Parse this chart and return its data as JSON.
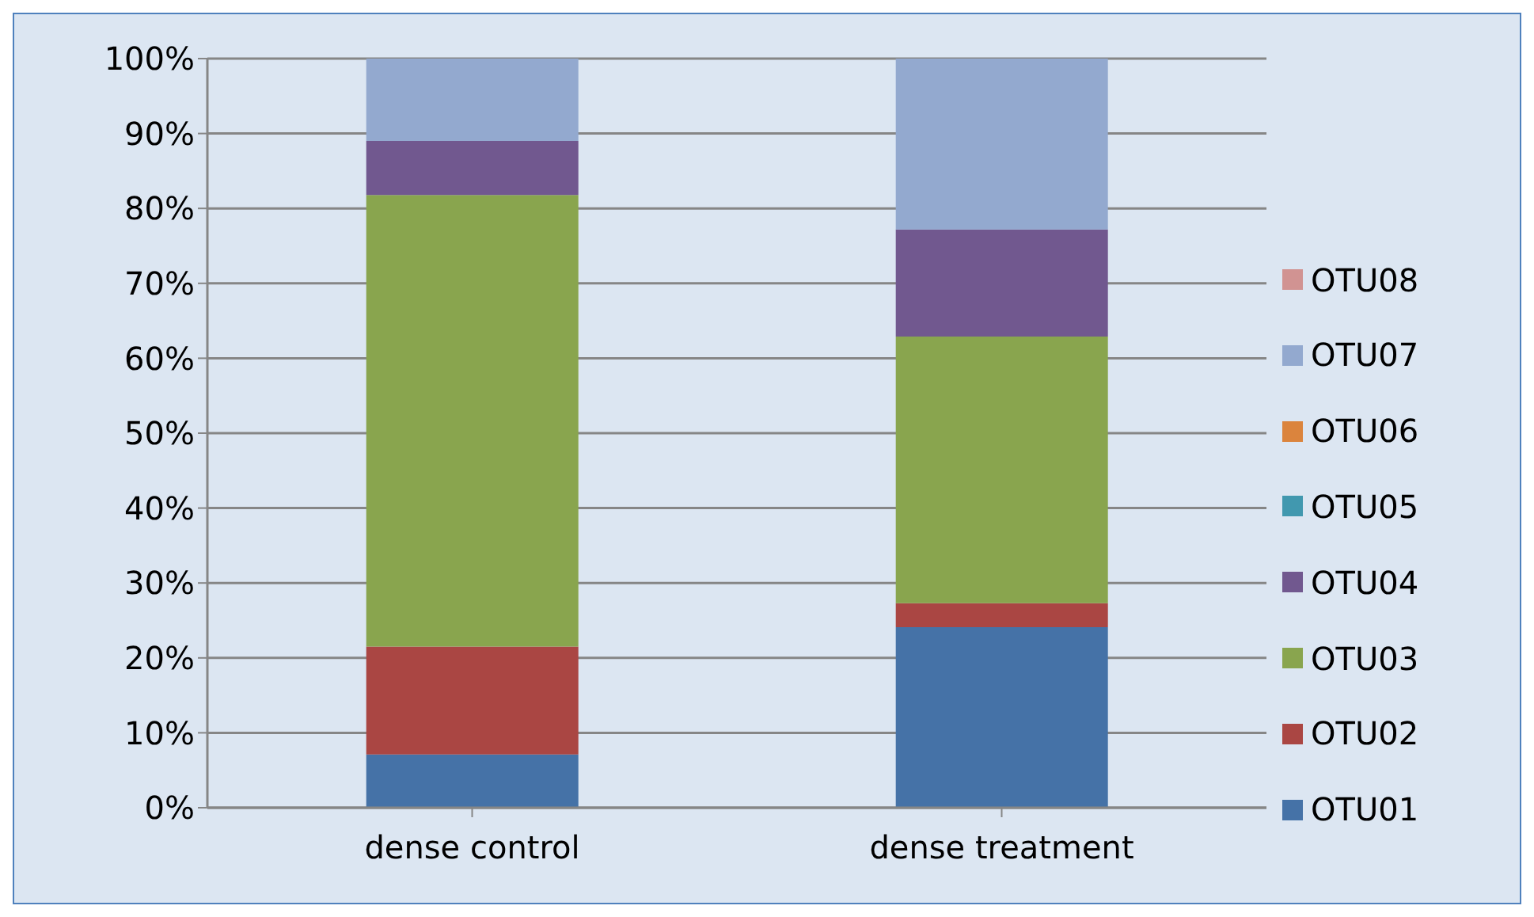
{
  "chart_data": {
    "type": "bar",
    "stacked": true,
    "categories": [
      "dense control",
      "dense treatment"
    ],
    "series": [
      {
        "name": "OTU01",
        "color": "#4572a7",
        "values": [
          7.1,
          24.1
        ]
      },
      {
        "name": "OTU02",
        "color": "#aa4643",
        "values": [
          14.4,
          3.2
        ]
      },
      {
        "name": "OTU03",
        "color": "#89a54e",
        "values": [
          60.3,
          35.6
        ]
      },
      {
        "name": "OTU04",
        "color": "#71588f",
        "values": [
          7.2,
          14.3
        ]
      },
      {
        "name": "OTU05",
        "color": "#4198af",
        "values": [
          0,
          0
        ]
      },
      {
        "name": "OTU06",
        "color": "#db843d",
        "values": [
          0,
          0
        ]
      },
      {
        "name": "OTU07",
        "color": "#93a9cf",
        "values": [
          11.0,
          22.8
        ]
      },
      {
        "name": "OTU08",
        "color": "#d19392",
        "values": [
          0,
          0
        ]
      }
    ],
    "ylim": [
      0,
      100
    ],
    "yticks": [
      {
        "value": 0,
        "label": "0%"
      },
      {
        "value": 10,
        "label": "10%"
      },
      {
        "value": 20,
        "label": "20%"
      },
      {
        "value": 30,
        "label": "30%"
      },
      {
        "value": 40,
        "label": "40%"
      },
      {
        "value": 50,
        "label": "50%"
      },
      {
        "value": 60,
        "label": "60%"
      },
      {
        "value": 70,
        "label": "70%"
      },
      {
        "value": 80,
        "label": "80%"
      },
      {
        "value": 90,
        "label": "90%"
      },
      {
        "value": 100,
        "label": "100%"
      }
    ],
    "grid": "y",
    "legend": "right"
  }
}
